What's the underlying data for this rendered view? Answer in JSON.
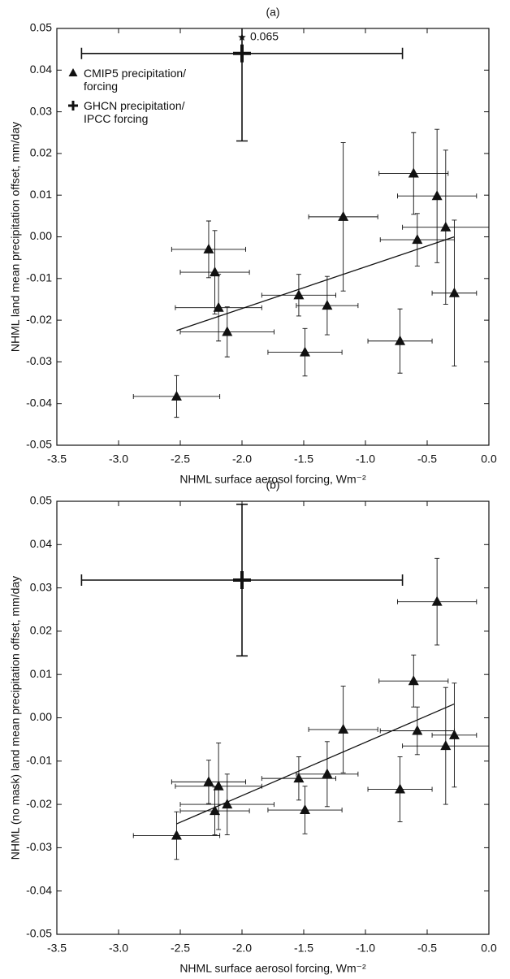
{
  "chart_data": [
    {
      "type": "scatter",
      "title": "(a)",
      "xlabel": "NHML surface aerosol forcing, Wm⁻²",
      "ylabel": "NHML land mean precipitation offset, mm/day",
      "xlim": [
        -3.5,
        0.0
      ],
      "xticks": [
        -3.5,
        {
          "value": -3.0,
          "label": "-3.0"
        },
        -2.5,
        {
          "value": -2.0,
          "label": "-2.0"
        },
        -1.5,
        {
          "value": -1.0,
          "label": "-1.0"
        },
        -0.5,
        {
          "value": 0.0,
          "label": "0.0"
        }
      ],
      "ylim": [
        -0.05,
        0.05
      ],
      "yticks": [
        -0.05,
        -0.04,
        -0.03,
        -0.02,
        -0.01,
        {
          "value": 0,
          "label": "0.00"
        },
        0.01,
        0.02,
        0.03,
        0.04,
        0.05
      ],
      "legend": "upper left",
      "series": [
        {
          "name": "CMIP5 precipitation/ forcing",
          "marker": "triangle",
          "color": "#111111",
          "x": [
            -2.53,
            -2.27,
            -2.22,
            -2.19,
            -2.12,
            -1.54,
            -1.49,
            -1.31,
            -1.18,
            -0.72,
            -0.61,
            -0.58,
            -0.42,
            -0.35,
            -0.28
          ],
          "values": [
            -0.0383,
            -0.003,
            -0.0085,
            -0.017,
            -0.0228,
            -0.014,
            -0.0277,
            -0.0165,
            0.0048,
            -0.025,
            0.0152,
            -0.0007,
            0.0098,
            0.0023,
            -0.0135
          ],
          "xerr": [
            0.35,
            0.3,
            0.28,
            0.35,
            0.38,
            0.3,
            0.3,
            0.25,
            0.28,
            0.26,
            0.28,
            0.3,
            0.32,
            0.35,
            0.18
          ],
          "yerr": [
            0.005,
            0.0068,
            0.01,
            0.008,
            0.006,
            0.005,
            0.0057,
            0.007,
            0.0178,
            0.0077,
            0.0098,
            0.0063,
            0.016,
            0.0185,
            0.0175
          ]
        },
        {
          "name": "GHCN precipitation/ IPCC forcing",
          "marker": "plus",
          "color": "#111111",
          "x": [
            -2.0
          ],
          "values": [
            0.044
          ],
          "xerr": [
            1.3
          ],
          "yerr": [
            0.021
          ]
        }
      ],
      "fit": {
        "x": [
          -2.53,
          -0.28
        ],
        "values": [
          -0.0225,
          0.0
        ]
      },
      "annotations": [
        {
          "text": "0.065"
        }
      ]
    },
    {
      "type": "scatter",
      "title": "(b)",
      "xlabel": "NHML surface aerosol forcing, Wm⁻²",
      "ylabel": "NHML (no mask) land mean precipitation offset, mm/day",
      "xlim": [
        -3.5,
        0.0
      ],
      "xticks": [
        -3.5,
        {
          "value": -3.0,
          "label": "-3.0"
        },
        -2.5,
        {
          "value": -2.0,
          "label": "-2.0"
        },
        -1.5,
        {
          "value": -1.0,
          "label": "-1.0"
        },
        -0.5,
        {
          "value": 0.0,
          "label": "0.0"
        }
      ],
      "ylim": [
        -0.05,
        0.05
      ],
      "yticks": [
        -0.05,
        -0.04,
        -0.03,
        -0.02,
        -0.01,
        {
          "value": 0,
          "label": "0.00"
        },
        0.01,
        0.02,
        0.03,
        0.04,
        0.05
      ],
      "series": [
        {
          "marker": "triangle",
          "color": "#111111",
          "x": [
            -2.53,
            -2.27,
            -2.22,
            -2.19,
            -2.12,
            -1.54,
            -1.49,
            -1.31,
            -1.18,
            -0.72,
            -0.61,
            -0.58,
            -0.42,
            -0.35,
            -0.28
          ],
          "values": [
            -0.0272,
            -0.0148,
            -0.0215,
            -0.0158,
            -0.02,
            -0.014,
            -0.0213,
            -0.013,
            -0.0027,
            -0.0165,
            0.0085,
            -0.003,
            0.0268,
            -0.0065,
            -0.004
          ],
          "xerr": [
            0.35,
            0.3,
            0.28,
            0.35,
            0.38,
            0.3,
            0.3,
            0.25,
            0.28,
            0.26,
            0.28,
            0.3,
            0.32,
            0.35,
            0.18
          ],
          "yerr": [
            0.0055,
            0.005,
            0.0055,
            0.01,
            0.007,
            0.005,
            0.0055,
            0.0075,
            0.01,
            0.0075,
            0.006,
            0.0055,
            0.01,
            0.0135,
            0.012
          ]
        },
        {
          "marker": "plus",
          "color": "#111111",
          "x": [
            -2.0
          ],
          "values": [
            0.0318
          ],
          "xerr": [
            1.3
          ],
          "yerr": [
            0.0175
          ]
        }
      ],
      "fit": {
        "x": [
          -2.53,
          -0.28
        ],
        "values": [
          -0.0245,
          0.0032
        ]
      }
    }
  ]
}
